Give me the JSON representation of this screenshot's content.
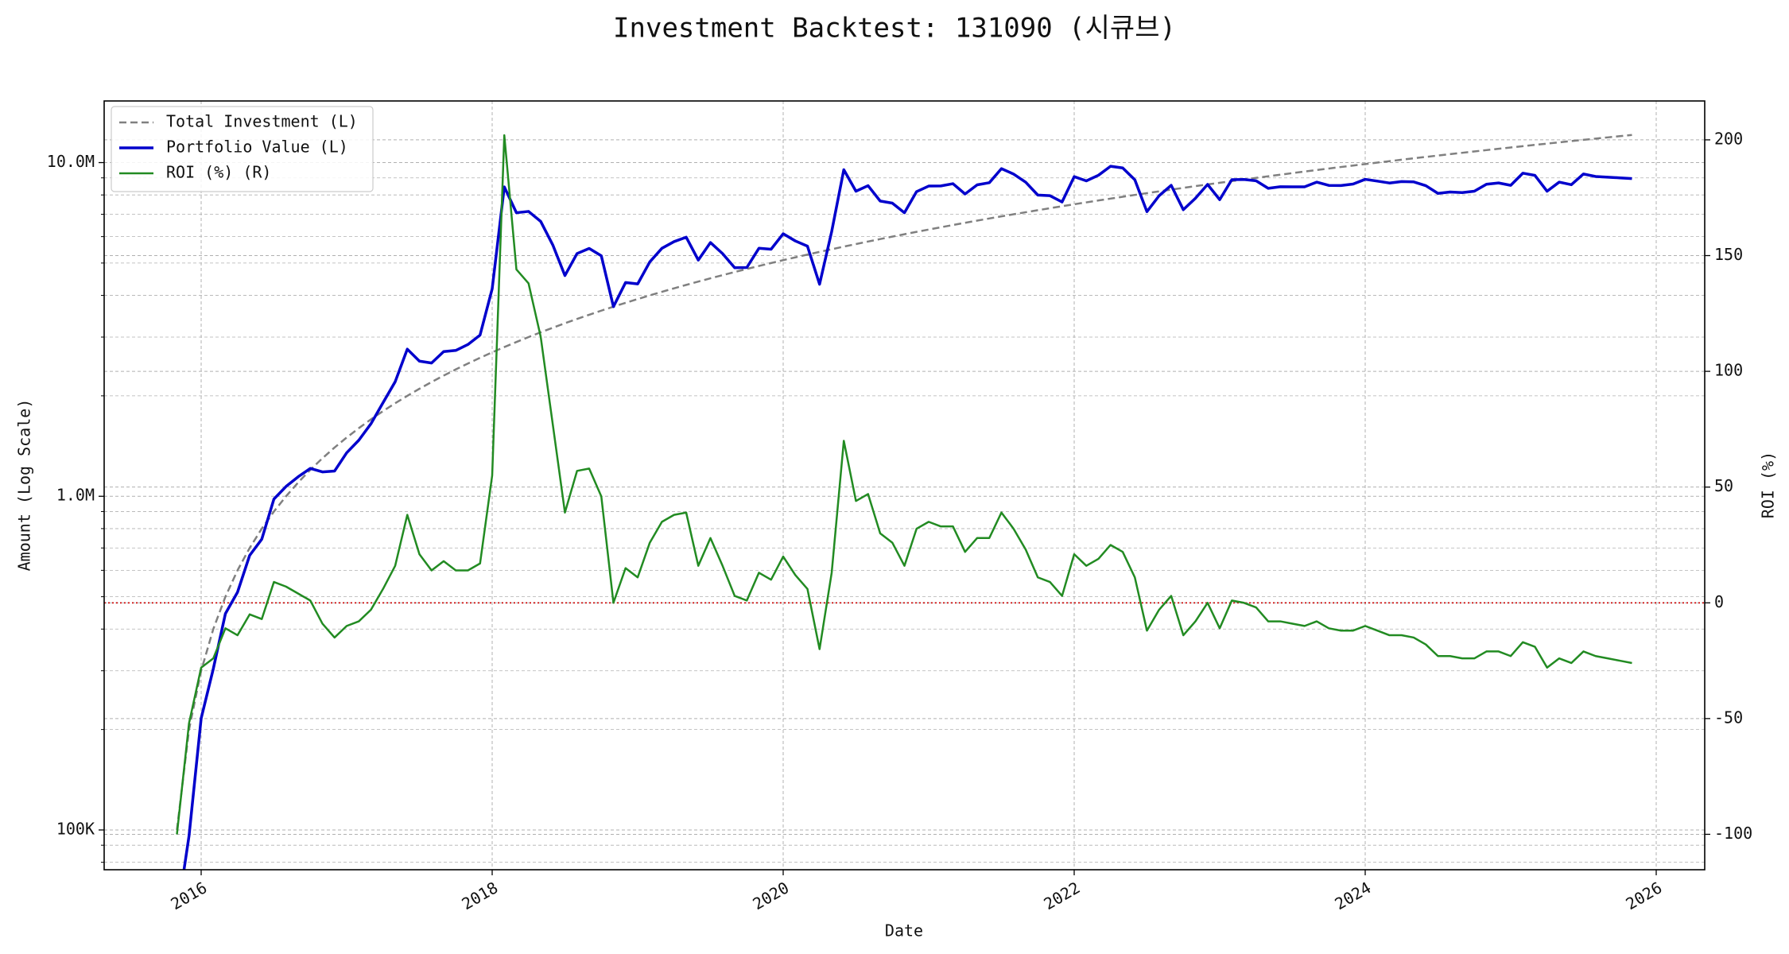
{
  "chart_data": {
    "type": "line",
    "title": "Investment Backtest: 131090 (시큐브)",
    "xlabel": "Date",
    "ylabel": "Amount (Log Scale)",
    "y2label": "ROI (%)",
    "yscale": "log",
    "grid": true,
    "legend": "upper left",
    "ylabel_color": "#0000cc",
    "y2label_color": "#228b22",
    "reference_line": {
      "axis": "y2",
      "value": 0,
      "color": "#cc0000"
    },
    "xlim": [
      "2015-05",
      "2026-05"
    ],
    "xticks": [
      {
        "value": "2016-01",
        "label": "2016"
      },
      {
        "value": "2018-01",
        "label": "2018"
      },
      {
        "value": "2020-01",
        "label": "2020"
      },
      {
        "value": "2022-01",
        "label": "2022"
      },
      {
        "value": "2024-01",
        "label": "2024"
      },
      {
        "value": "2026-01",
        "label": "2026"
      }
    ],
    "ylim": [
      76000,
      15300000
    ],
    "yticks": [
      {
        "value": 100000,
        "label": "100K"
      },
      {
        "value": 1000000,
        "label": "1.0M"
      },
      {
        "value": 10000000,
        "label": "10.0M"
      }
    ],
    "y2lim": [
      -115.3,
      216.8
    ],
    "y2ticks": [
      -100,
      -50,
      0,
      50,
      100,
      150,
      200
    ],
    "x": [
      "2015-11",
      "2015-12",
      "2016-01",
      "2016-02",
      "2016-03",
      "2016-04",
      "2016-05",
      "2016-06",
      "2016-07",
      "2016-08",
      "2016-09",
      "2016-10",
      "2016-11",
      "2016-12",
      "2017-01",
      "2017-02",
      "2017-03",
      "2017-04",
      "2017-05",
      "2017-06",
      "2017-07",
      "2017-08",
      "2017-09",
      "2017-10",
      "2017-11",
      "2017-12",
      "2018-01",
      "2018-02",
      "2018-03",
      "2018-04",
      "2018-05",
      "2018-06",
      "2018-07",
      "2018-08",
      "2018-09",
      "2018-10",
      "2018-11",
      "2018-12",
      "2019-01",
      "2019-02",
      "2019-03",
      "2019-04",
      "2019-05",
      "2019-06",
      "2019-07",
      "2019-08",
      "2019-09",
      "2019-10",
      "2019-11",
      "2019-12",
      "2020-01",
      "2020-02",
      "2020-03",
      "2020-04",
      "2020-05",
      "2020-06",
      "2020-07",
      "2020-08",
      "2020-09",
      "2020-10",
      "2020-11",
      "2020-12",
      "2021-01",
      "2021-02",
      "2021-03",
      "2021-04",
      "2021-05",
      "2021-06",
      "2021-07",
      "2021-08",
      "2021-09",
      "2021-10",
      "2021-11",
      "2021-12",
      "2022-01",
      "2022-02",
      "2022-03",
      "2022-04",
      "2022-05",
      "2022-06",
      "2022-07",
      "2022-08",
      "2022-09",
      "2022-10",
      "2022-11",
      "2022-12",
      "2023-01",
      "2023-02",
      "2023-03",
      "2023-04",
      "2023-05",
      "2023-06",
      "2023-07",
      "2023-08",
      "2023-09",
      "2023-10",
      "2023-11",
      "2023-12",
      "2024-01",
      "2024-02",
      "2024-03",
      "2024-04",
      "2024-05",
      "2024-06",
      "2024-07",
      "2024-08",
      "2024-09",
      "2024-10",
      "2024-11",
      "2024-12",
      "2025-01",
      "2025-02",
      "2025-03",
      "2025-04",
      "2025-05",
      "2025-06",
      "2025-07",
      "2025-08",
      "2025-09",
      "2025-10",
      "2025-11"
    ],
    "series": [
      {
        "name": "Total Investment (L)",
        "color": "#808080",
        "linestyle": "dashed",
        "linewidth": 2.5,
        "values": [
          100000,
          200000,
          300000,
          400000,
          500000,
          600000,
          700000,
          800000,
          900000,
          1000000,
          1100000,
          1200000,
          1300000,
          1400000,
          1500000,
          1600000,
          1700000,
          1800000,
          1900000,
          2000000,
          2100000,
          2200000,
          2300000,
          2400000,
          2500000,
          2600000,
          2700000,
          2800000,
          2900000,
          3000000,
          3100000,
          3200000,
          3300000,
          3400000,
          3500000,
          3600000,
          3700000,
          3800000,
          3900000,
          4000000,
          4100000,
          4200000,
          4300000,
          4400000,
          4500000,
          4600000,
          4700000,
          4800000,
          4900000,
          5000000,
          5100000,
          5200000,
          5300000,
          5400000,
          5500000,
          5600000,
          5700000,
          5800000,
          5900000,
          6000000,
          6100000,
          6200000,
          6300000,
          6400000,
          6500000,
          6600000,
          6700000,
          6800000,
          6900000,
          7000000,
          7100000,
          7200000,
          7300000,
          7400000,
          7500000,
          7600000,
          7700000,
          7800000,
          7900000,
          8000000,
          8100000,
          8200000,
          8300000,
          8400000,
          8500000,
          8600000,
          8700000,
          8800000,
          8900000,
          9000000,
          9100000,
          9200000,
          9300000,
          9400000,
          9500000,
          9600000,
          9700000,
          9800000,
          9900000,
          10000000,
          10100000,
          10200000,
          10300000,
          10400000,
          10500000,
          10600000,
          10700000,
          10800000,
          10900000,
          11000000,
          11100000,
          11200000,
          11300000,
          11400000,
          11500000,
          11600000,
          11700000,
          11800000,
          11900000,
          12000000,
          12100000
        ]
      },
      {
        "name": "Portfolio Value (L)",
        "color": "#0000cc",
        "linestyle": "solid",
        "linewidth": 3.5,
        "values": [
          0,
          96000,
          216000,
          304000,
          445000,
          516000,
          665000,
          744000,
          981000,
          1070000,
          1144000,
          1212000,
          1183000,
          1190000,
          1350000,
          1472000,
          1649000,
          1908000,
          2204000,
          2760000,
          2541000,
          2508000,
          2714000,
          2736000,
          2850000,
          3042000,
          4185000,
          8456000,
          7076000,
          7140000,
          6665000,
          5664000,
          4587000,
          5338000,
          5530000,
          5256000,
          3700000,
          4370000,
          4329000,
          5040000,
          5535000,
          5796000,
          5977000,
          5104000,
          5760000,
          5336000,
          4841000,
          4848000,
          5537000,
          5500000,
          6120000,
          5824000,
          5618000,
          4320000,
          6215000,
          9520000,
          8208000,
          8526000,
          7670000,
          7560000,
          7076000,
          8184000,
          8505000,
          8512000,
          8645000,
          8052000,
          8576000,
          8704000,
          9591000,
          9240000,
          8733000,
          7992000,
          7957000,
          7622000,
          9075000,
          8816000,
          9163000,
          9750000,
          9638000,
          8880000,
          7128000,
          7954000,
          8549000,
          7224000,
          7820000,
          8600000,
          7743000,
          8888000,
          8900000,
          8820000,
          8372000,
          8464000,
          8463000,
          8460000,
          8740000,
          8544000,
          8536000,
          8624000,
          8910000,
          8800000,
          8686000,
          8772000,
          8755000,
          8528000,
          8085000,
          8162000,
          8132000,
          8208000,
          8611000,
          8690000,
          8547000,
          9296000,
          9153000,
          8208000,
          8740000,
          8584000,
          9243000,
          9086000,
          9044000,
          9000000,
          8954000
        ]
      },
      {
        "name": "ROI (%) (R)",
        "color": "#228b22",
        "linestyle": "solid",
        "linewidth": 2.5,
        "axis": "y2",
        "values": [
          -100,
          -52,
          -28,
          -24,
          -11,
          -14,
          -5,
          -7,
          9,
          7,
          4,
          1,
          -9,
          -15,
          -10,
          -8,
          -3,
          6,
          16,
          38,
          21,
          14,
          18,
          14,
          14,
          17,
          55,
          202,
          144,
          138,
          115,
          77,
          39,
          57,
          58,
          46,
          0,
          15,
          11,
          26,
          35,
          38,
          39,
          16,
          28,
          16,
          3,
          1,
          13,
          10,
          20,
          12,
          6,
          -20,
          13,
          70,
          44,
          47,
          30,
          26,
          16,
          32,
          35,
          33,
          33,
          22,
          28,
          28,
          39,
          32,
          23,
          11,
          9,
          3,
          21,
          16,
          19,
          25,
          22,
          11,
          -12,
          -3,
          3,
          -14,
          -8,
          0,
          -11,
          1,
          0,
          -2,
          -8,
          -8,
          -9,
          -10,
          -8,
          -11,
          -12,
          -12,
          -10,
          -12,
          -14,
          -14,
          -15,
          -18,
          -23,
          -23,
          -24,
          -24,
          -21,
          -21,
          -23,
          -17,
          -19,
          -28,
          -24,
          -26,
          -21,
          -23,
          -24,
          -25,
          -26
        ]
      }
    ]
  }
}
